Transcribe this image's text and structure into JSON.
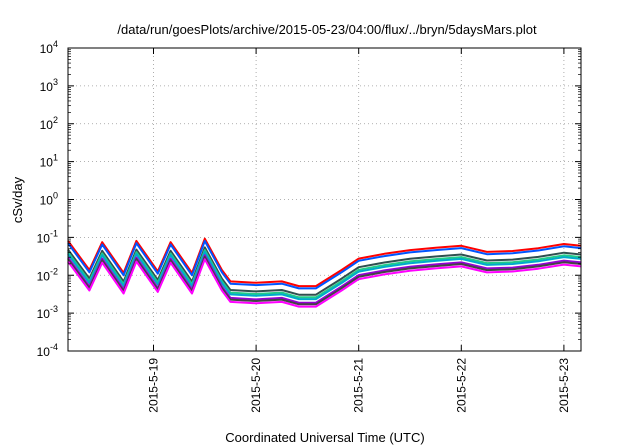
{
  "chart_data": {
    "type": "line",
    "title": "/data/run/goesPlots/archive/2015-05-23/04:00/flux/../bryn/5daysMars.plot",
    "xlabel": "Coordinated Universal Time (UTC)",
    "ylabel": "cSv/day",
    "yscale": "log",
    "ylim": [
      0.0001,
      10000
    ],
    "xlim": [
      "2015-05-18 04:00",
      "2015-05-23 04:00"
    ],
    "grid": true,
    "x_ticks": [
      "2015-5-19",
      "2015-5-20",
      "2015-5-21",
      "2015-5-22",
      "2015-5-23"
    ],
    "y_ticks": [
      {
        "base": "10",
        "exp": "-4",
        "value": 0.0001
      },
      {
        "base": "10",
        "exp": "-3",
        "value": 0.001
      },
      {
        "base": "10",
        "exp": "-2",
        "value": 0.01
      },
      {
        "base": "10",
        "exp": "-1",
        "value": 0.1
      },
      {
        "base": "10",
        "exp": "0",
        "value": 1
      },
      {
        "base": "10",
        "exp": "1",
        "value": 10
      },
      {
        "base": "10",
        "exp": "2",
        "value": 100
      },
      {
        "base": "10",
        "exp": "3",
        "value": 1000
      },
      {
        "base": "10",
        "exp": "4",
        "value": 10000
      }
    ],
    "series": [
      {
        "color": "#ff0000",
        "factor": 1.15
      },
      {
        "color": "#0055ff",
        "factor": 1.0
      },
      {
        "color": "#2f4f4f",
        "factor": 0.68
      },
      {
        "color": "#22cc88",
        "factor": 0.58
      },
      {
        "color": "#00aacc",
        "factor": 0.52
      },
      {
        "color": "#9400d3",
        "factor": 0.42
      },
      {
        "color": "#444444",
        "factor": 0.38
      },
      {
        "color": "#ff00ff",
        "factor": 0.33
      }
    ],
    "baseline": {
      "x": [
        "2015-05-18 04:00",
        "2015-05-18 09:00",
        "2015-05-18 12:00",
        "2015-05-18 17:00",
        "2015-05-18 20:00",
        "2015-05-19 01:00",
        "2015-05-19 04:00",
        "2015-05-19 09:00",
        "2015-05-19 12:00",
        "2015-05-19 16:00",
        "2015-05-19 18:00",
        "2015-05-20 00:00",
        "2015-05-20 06:00",
        "2015-05-20 10:00",
        "2015-05-20 14:00",
        "2015-05-20 20:00",
        "2015-05-21 00:00",
        "2015-05-21 06:00",
        "2015-05-21 12:00",
        "2015-05-21 18:00",
        "2015-05-22 00:00",
        "2015-05-22 06:00",
        "2015-05-22 12:00",
        "2015-05-22 18:00",
        "2015-05-23 00:00",
        "2015-05-23 04:00"
      ],
      "y": [
        0.07,
        0.012,
        0.065,
        0.01,
        0.07,
        0.011,
        0.065,
        0.01,
        0.08,
        0.012,
        0.006,
        0.0055,
        0.006,
        0.0045,
        0.0045,
        0.012,
        0.024,
        0.032,
        0.04,
        0.046,
        0.052,
        0.036,
        0.038,
        0.045,
        0.058,
        0.052
      ]
    }
  }
}
